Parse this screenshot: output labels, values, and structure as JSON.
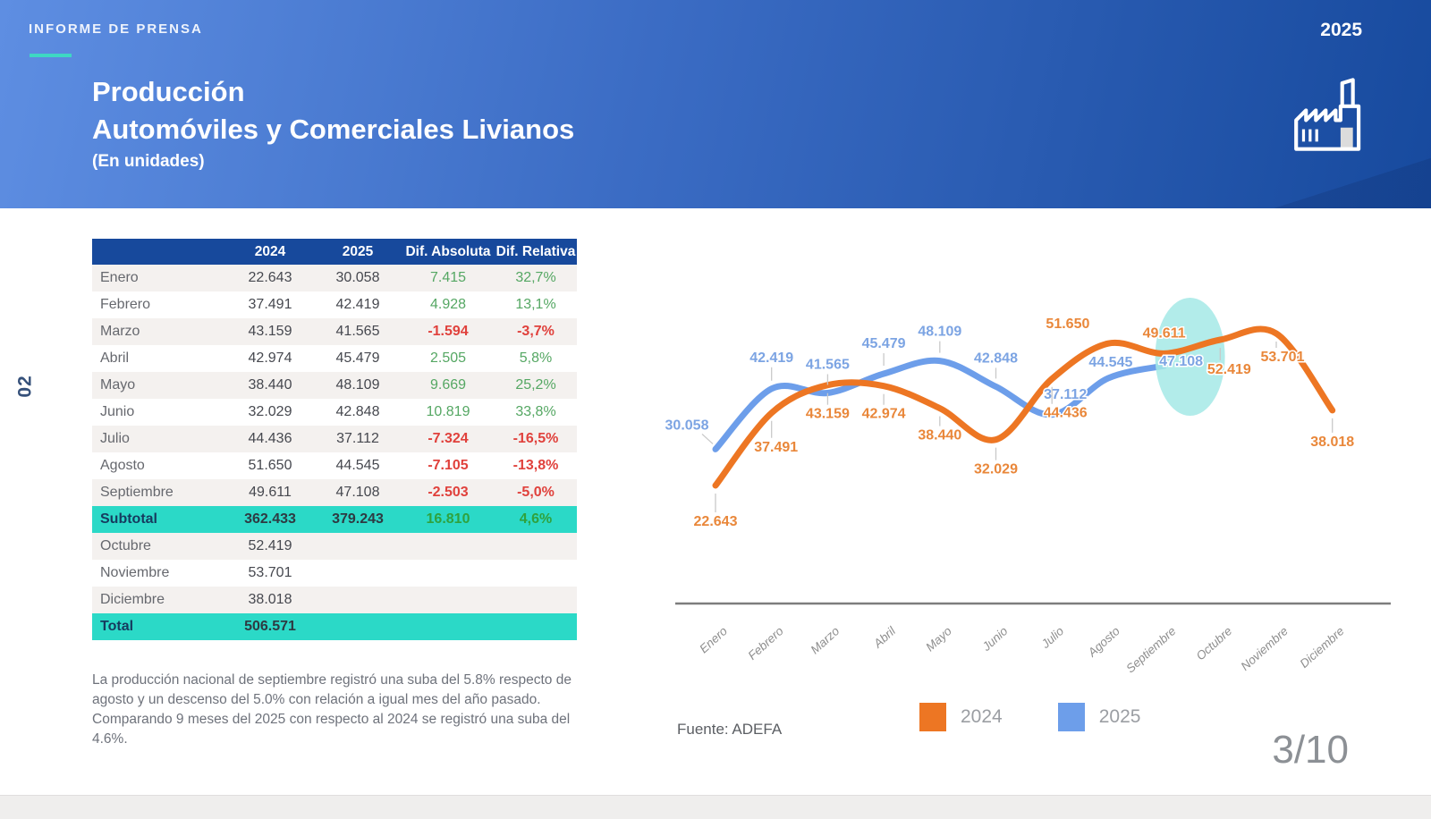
{
  "header": {
    "kicker": "INFORME DE PRENSA",
    "year": "2025",
    "title_line1": "Producción",
    "title_line2": "Automóviles y Comerciales Livianos",
    "title_line3": "(En unidades)"
  },
  "page_tag": "02",
  "table": {
    "columns": [
      "",
      "2024",
      "2025",
      "Dif. Absoluta",
      "Dif. Relativa"
    ],
    "rows": [
      {
        "label": "Enero",
        "y2024": "22.643",
        "y2025": "30.058",
        "abs": "7.415",
        "rel": "32,7%",
        "kind": "data"
      },
      {
        "label": "Febrero",
        "y2024": "37.491",
        "y2025": "42.419",
        "abs": "4.928",
        "rel": "13,1%",
        "kind": "data"
      },
      {
        "label": "Marzo",
        "y2024": "43.159",
        "y2025": "41.565",
        "abs": "-1.594",
        "rel": "-3,7%",
        "kind": "data"
      },
      {
        "label": "Abril",
        "y2024": "42.974",
        "y2025": "45.479",
        "abs": "2.505",
        "rel": "5,8%",
        "kind": "data"
      },
      {
        "label": "Mayo",
        "y2024": "38.440",
        "y2025": "48.109",
        "abs": "9.669",
        "rel": "25,2%",
        "kind": "data"
      },
      {
        "label": "Junio",
        "y2024": "32.029",
        "y2025": "42.848",
        "abs": "10.819",
        "rel": "33,8%",
        "kind": "data"
      },
      {
        "label": "Julio",
        "y2024": "44.436",
        "y2025": "37.112",
        "abs": "-7.324",
        "rel": "-16,5%",
        "kind": "data"
      },
      {
        "label": "Agosto",
        "y2024": "51.650",
        "y2025": "44.545",
        "abs": "-7.105",
        "rel": "-13,8%",
        "kind": "data"
      },
      {
        "label": "Septiembre",
        "y2024": "49.611",
        "y2025": "47.108",
        "abs": "-2.503",
        "rel": "-5,0%",
        "kind": "data"
      },
      {
        "label": "Subtotal",
        "y2024": "362.433",
        "y2025": "379.243",
        "abs": "16.810",
        "rel": "4,6%",
        "kind": "total"
      },
      {
        "label": "Octubre",
        "y2024": "52.419",
        "y2025": "",
        "abs": "",
        "rel": "",
        "kind": "data"
      },
      {
        "label": "Noviembre",
        "y2024": "53.701",
        "y2025": "",
        "abs": "",
        "rel": "",
        "kind": "data"
      },
      {
        "label": "Diciembre",
        "y2024": "38.018",
        "y2025": "",
        "abs": "",
        "rel": "",
        "kind": "data"
      },
      {
        "label": "Total",
        "y2024": "506.571",
        "y2025": "",
        "abs": "",
        "rel": "",
        "kind": "total"
      }
    ]
  },
  "notes": [
    "La producción nacional de septiembre registró una suba del 5.8% respecto de agosto y un descenso del 5.0% con relación a igual mes del año pasado.",
    "Comparando 9 meses del 2025 con respecto al 2024 se registró una suba del 4.6%."
  ],
  "chart_data": {
    "type": "line",
    "categories": [
      "Enero",
      "Febrero",
      "Marzo",
      "Abril",
      "Mayo",
      "Junio",
      "Julio",
      "Agosto",
      "Septiembre",
      "Octubre",
      "Noviembre",
      "Diciembre"
    ],
    "series": [
      {
        "name": "2024",
        "color": "#ED7623",
        "label_color": "#E9873A",
        "values": [
          22643,
          37491,
          43159,
          42974,
          38440,
          32029,
          44436,
          51650,
          49611,
          52419,
          53701,
          38018
        ]
      },
      {
        "name": "2025",
        "color": "#6D9EEA",
        "label_color": "#7CA4E3",
        "values": [
          30058,
          42419,
          41565,
          45479,
          48109,
          42848,
          37112,
          44545,
          47108
        ]
      }
    ],
    "highlight": {
      "category": "Septiembre",
      "shape": "ellipse",
      "color": "#A5E9E6"
    },
    "ylim": [
      20000,
      56000
    ],
    "grid": false,
    "data_labels": true,
    "legend_position": "bottom",
    "xlabel": "",
    "ylabel": ""
  },
  "legend": [
    {
      "label": "2024",
      "color": "#ED7623"
    },
    {
      "label": "2025",
      "color": "#6D9EEA"
    }
  ],
  "source": "Fuente: ADEFA",
  "page_number": "3/10"
}
